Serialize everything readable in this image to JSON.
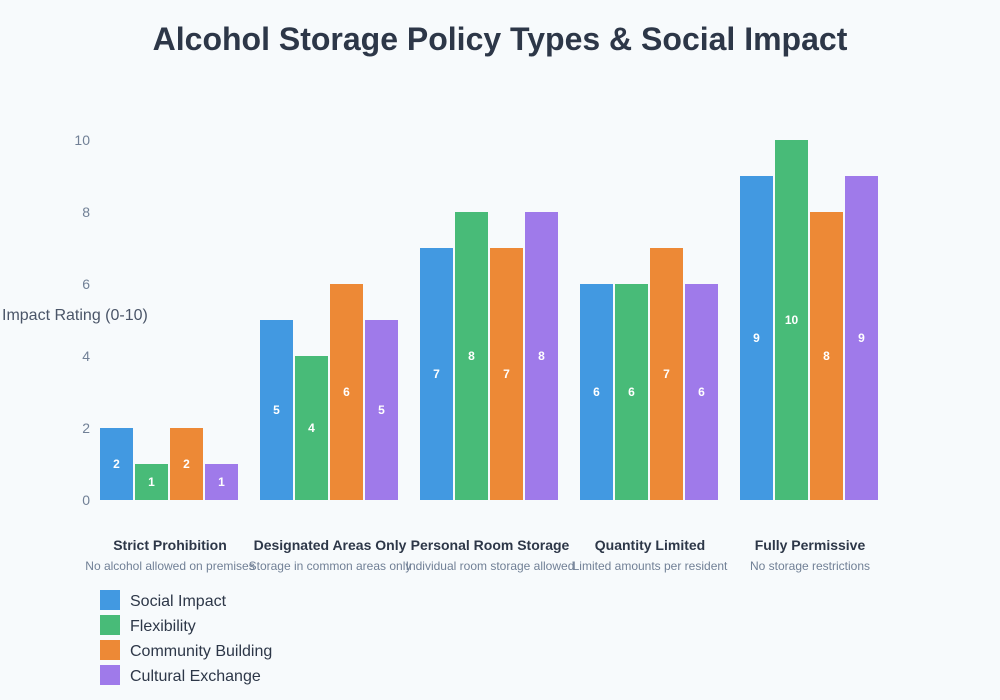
{
  "chart_data": {
    "type": "bar",
    "title": "Alcohol Storage Policy Types & Social Impact",
    "ylabel": "Impact Rating (0-10)",
    "xlabel": "",
    "ylim": [
      0,
      10
    ],
    "yticks": [
      0,
      2,
      4,
      6,
      8,
      10
    ],
    "grid": false,
    "legend_placement": "bottom-left",
    "categories": [
      "Strict Prohibition",
      "Designated Areas Only",
      "Personal Room Storage",
      "Quantity Limited",
      "Fully Permissive"
    ],
    "descriptions": [
      "No alcohol allowed on premises",
      "Storage in common areas only",
      "Individual room storage allowed",
      "Limited amounts per resident",
      "No storage restrictions"
    ],
    "series": [
      {
        "name": "Social Impact",
        "color": "#4299e1",
        "values": [
          2,
          5,
          7,
          6,
          9
        ]
      },
      {
        "name": "Flexibility",
        "color": "#48bb78",
        "values": [
          1,
          4,
          8,
          6,
          10
        ]
      },
      {
        "name": "Community Building",
        "color": "#ed8936",
        "values": [
          2,
          6,
          7,
          7,
          8
        ]
      },
      {
        "name": "Cultural Exchange",
        "color": "#9f7aea",
        "values": [
          1,
          5,
          8,
          6,
          9
        ]
      }
    ]
  }
}
